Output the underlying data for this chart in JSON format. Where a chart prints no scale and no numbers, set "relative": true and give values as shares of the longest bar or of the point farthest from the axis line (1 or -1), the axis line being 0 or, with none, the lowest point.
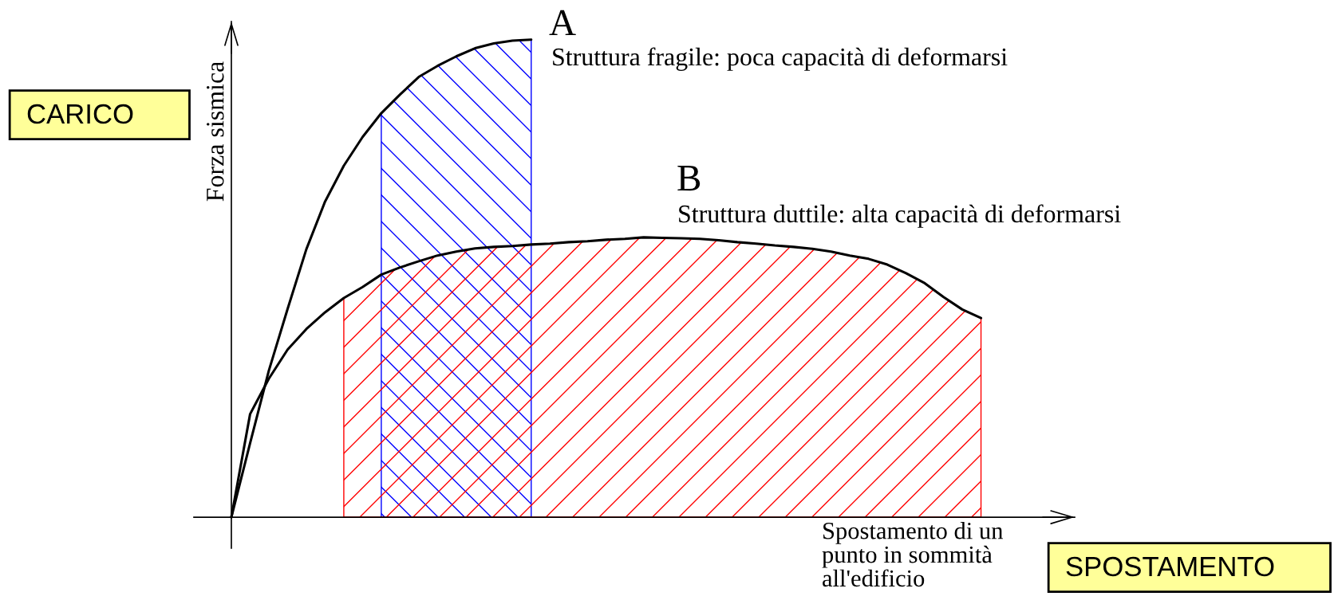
{
  "chart_data": {
    "type": "line",
    "relative": true,
    "ylabel": "Forza sismica",
    "xlabel": "Spostamento di un\npunto in sommità\nall'edificio",
    "annotations": [
      "Struttura fragile: poca capacità di deformarsi",
      "Struttura duttile: alta capacità di deformarsi",
      "CARICO",
      "SPOSTAMENTO"
    ],
    "categories": [
      null,
      null,
      null,
      null,
      null,
      null,
      null,
      null,
      null,
      null,
      null,
      null,
      null,
      null,
      null,
      null,
      null,
      null,
      null,
      null,
      null,
      null,
      null,
      null,
      null,
      null,
      null,
      null,
      null,
      null,
      null,
      null,
      null,
      null,
      null,
      null,
      null,
      null,
      null,
      null,
      null
    ],
    "series": [
      {
        "name": "A",
        "color": "#000000",
        "values": [
          0,
          0.155,
          0.307,
          0.436,
          0.561,
          0.661,
          0.736,
          0.796,
          0.846,
          0.885,
          0.922,
          0.945,
          0.965,
          0.982,
          0.992,
          0.998,
          1.0,
          null,
          null,
          null,
          null,
          null,
          null,
          null,
          null,
          null,
          null,
          null,
          null,
          null,
          null,
          null,
          null,
          null,
          null,
          null,
          null,
          null,
          null,
          null,
          null
        ]
      },
      {
        "name": "B",
        "color": "#000000",
        "values": [
          0,
          0.216,
          0.29,
          0.351,
          0.394,
          0.429,
          0.459,
          0.482,
          0.508,
          0.523,
          0.536,
          0.548,
          0.556,
          0.563,
          0.566,
          0.568,
          0.571,
          0.573,
          0.576,
          0.578,
          0.581,
          0.583,
          0.586,
          0.585,
          0.584,
          0.583,
          0.58,
          0.576,
          0.573,
          0.569,
          0.566,
          0.562,
          0.556,
          0.548,
          0.541,
          0.529,
          0.511,
          0.49,
          0.461,
          0.435,
          0.417
        ]
      },
      {
        "type": "area",
        "color": "#0000ff",
        "values": [
          null,
          null,
          null,
          null,
          null,
          null,
          null,
          null,
          0.846,
          0.885,
          0.922,
          0.945,
          0.965,
          0.982,
          0.992,
          0.998,
          1.0,
          null,
          null,
          null,
          null,
          null,
          null,
          null,
          null,
          null,
          null,
          null,
          null,
          null,
          null,
          null,
          null,
          null,
          null,
          null,
          null,
          null,
          null,
          null,
          null
        ]
      },
      {
        "type": "area",
        "color": "#ff0000",
        "values": [
          null,
          null,
          null,
          null,
          null,
          null,
          0.459,
          0.482,
          0.508,
          0.523,
          0.536,
          0.548,
          0.556,
          0.563,
          0.566,
          0.568,
          0.571,
          0.573,
          0.576,
          0.578,
          0.581,
          0.583,
          0.586,
          0.585,
          0.584,
          0.583,
          0.58,
          0.576,
          0.573,
          0.569,
          0.566,
          0.562,
          0.556,
          0.548,
          0.541,
          0.529,
          0.511,
          0.49,
          0.461,
          0.435,
          0.417
        ]
      }
    ]
  }
}
